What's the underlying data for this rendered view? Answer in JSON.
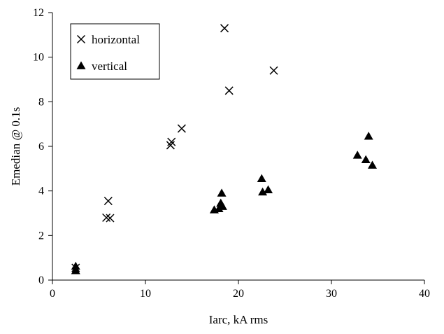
{
  "chart_data": {
    "type": "scatter",
    "xlabel": "Iarc, kA rms",
    "ylabel": "Emedian @ 0.1s",
    "xlim": [
      0,
      40
    ],
    "ylim": [
      0,
      12
    ],
    "xticks": [
      0,
      10,
      20,
      30,
      40
    ],
    "yticks": [
      0,
      2,
      4,
      6,
      8,
      10,
      12
    ],
    "grid": false,
    "legend_position": "top-left",
    "series": [
      {
        "name": "horizontal",
        "marker": "x",
        "color": "#000000",
        "points": [
          [
            2.5,
            0.55
          ],
          [
            5.8,
            2.8
          ],
          [
            6.0,
            3.55
          ],
          [
            6.2,
            2.78
          ],
          [
            12.7,
            6.05
          ],
          [
            12.8,
            6.2
          ],
          [
            13.9,
            6.8
          ],
          [
            18.5,
            11.3
          ],
          [
            19.0,
            8.5
          ],
          [
            23.8,
            9.4
          ]
        ]
      },
      {
        "name": "vertical",
        "marker": "triangle",
        "color": "#000000",
        "points": [
          [
            2.5,
            0.42
          ],
          [
            2.5,
            0.62
          ],
          [
            17.4,
            3.15
          ],
          [
            17.9,
            3.2
          ],
          [
            18.1,
            3.45
          ],
          [
            18.2,
            3.9
          ],
          [
            18.3,
            3.3
          ],
          [
            22.5,
            4.55
          ],
          [
            22.6,
            3.95
          ],
          [
            23.2,
            4.05
          ],
          [
            32.8,
            5.6
          ],
          [
            33.7,
            5.4
          ],
          [
            34.0,
            6.45
          ],
          [
            34.4,
            5.15
          ]
        ]
      }
    ]
  }
}
